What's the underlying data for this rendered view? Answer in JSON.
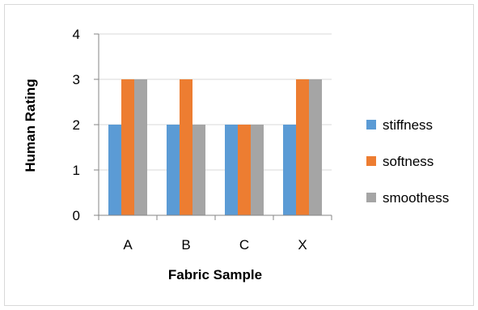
{
  "chart_data": {
    "type": "bar",
    "title": "",
    "xlabel": "Fabric Sample",
    "ylabel": "Human Rating",
    "categories": [
      "A",
      "B",
      "C",
      "X"
    ],
    "series": [
      {
        "name": "stiffness",
        "color": "#5b9bd5",
        "values": [
          2,
          2,
          2,
          2
        ]
      },
      {
        "name": "softness",
        "color": "#ed7d31",
        "values": [
          3,
          3,
          2,
          3
        ]
      },
      {
        "name": "smoothess",
        "color": "#a5a5a5",
        "values": [
          3,
          2,
          2,
          3
        ]
      }
    ],
    "ylim": [
      0,
      4
    ],
    "yticks": [
      0,
      1,
      2,
      3,
      4
    ],
    "grid": true,
    "legend_position": "right"
  }
}
